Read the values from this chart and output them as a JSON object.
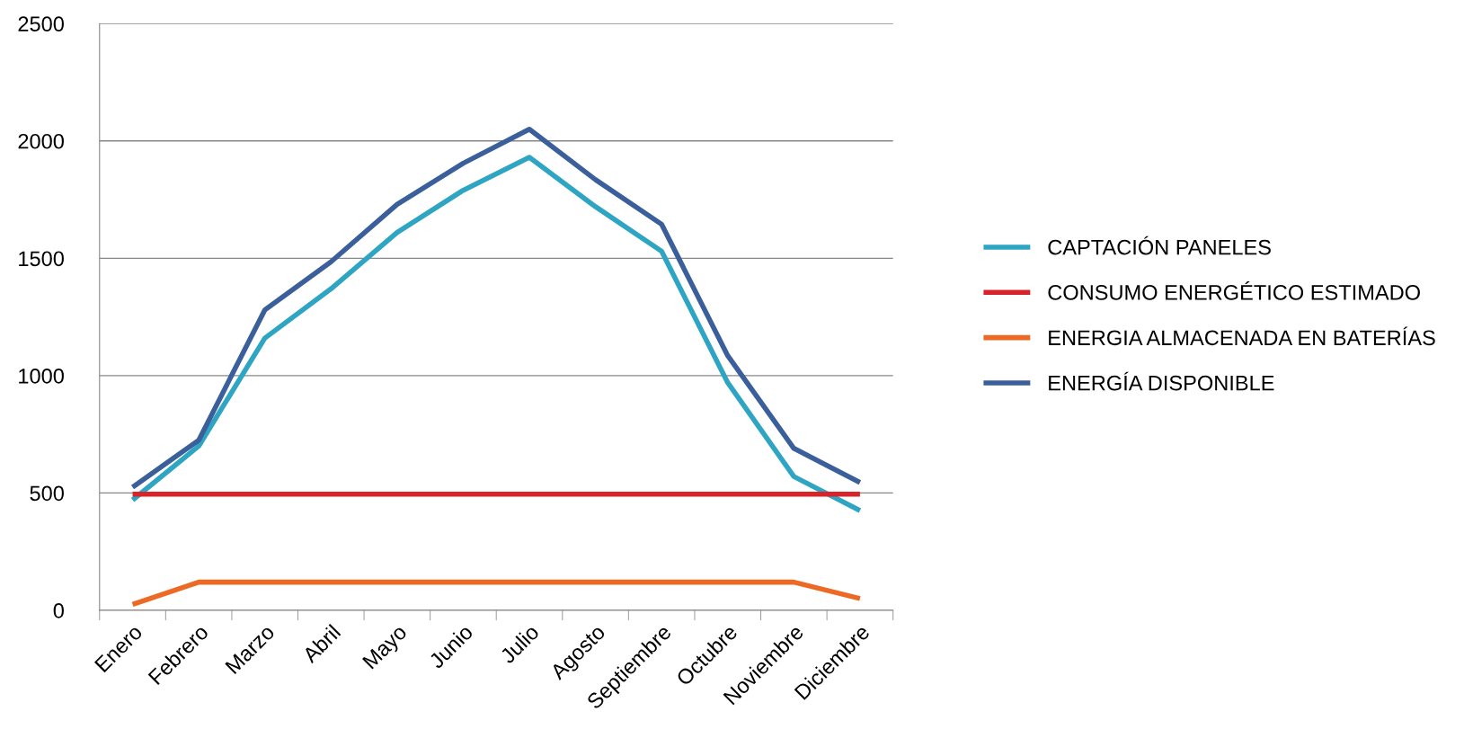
{
  "chart_data": {
    "type": "line",
    "categories": [
      "Enero",
      "Febrero",
      "Marzo",
      "Abril",
      "Mayo",
      "Junio",
      "Julio",
      "Agosto",
      "Septiembre",
      "Octubre",
      "Noviembre",
      "Diciembre"
    ],
    "series": [
      {
        "name": "CAPTACIÓN PANELES",
        "color": "#2fa5c4",
        "values": [
          470,
          700,
          1160,
          1370,
          1610,
          1790,
          1930,
          1720,
          1530,
          970,
          570,
          425
        ]
      },
      {
        "name": "CONSUMO ENERGÉTICO ESTIMADO",
        "color": "#d9232b",
        "values": [
          495,
          495,
          495,
          495,
          495,
          495,
          495,
          495,
          495,
          495,
          495,
          495
        ]
      },
      {
        "name": "ENERGIA ALMACENADA EN BATERÍAS",
        "color": "#ec6a25",
        "values": [
          25,
          120,
          120,
          120,
          120,
          120,
          120,
          120,
          120,
          120,
          120,
          50
        ]
      },
      {
        "name": "ENERGÍA DISPONIBLE",
        "color": "#3a5f9b",
        "values": [
          525,
          725,
          1280,
          1485,
          1730,
          1905,
          2050,
          1835,
          1645,
          1085,
          690,
          545
        ]
      }
    ],
    "ylim": [
      0,
      2500
    ],
    "yticks": [
      0,
      500,
      1000,
      1500,
      2000,
      2500
    ],
    "grid": "y",
    "legend": "right",
    "marker": "none",
    "line_style": "solid"
  }
}
